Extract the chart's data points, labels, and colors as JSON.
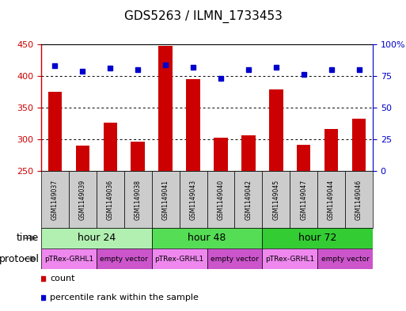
{
  "title": "GDS5263 / ILMN_1733453",
  "samples": [
    "GSM1149037",
    "GSM1149039",
    "GSM1149036",
    "GSM1149038",
    "GSM1149041",
    "GSM1149043",
    "GSM1149040",
    "GSM1149042",
    "GSM1149045",
    "GSM1149047",
    "GSM1149044",
    "GSM1149046"
  ],
  "counts": [
    375,
    290,
    326,
    296,
    447,
    395,
    302,
    306,
    379,
    291,
    316,
    333
  ],
  "percentile_ranks": [
    83,
    79,
    81,
    80,
    84,
    82,
    73,
    80,
    82,
    76,
    80,
    80
  ],
  "ylim_left": [
    250,
    450
  ],
  "ylim_right": [
    0,
    100
  ],
  "yticks_left": [
    250,
    300,
    350,
    400,
    450
  ],
  "yticks_right": [
    0,
    25,
    50,
    75,
    100
  ],
  "bar_color": "#cc0000",
  "dot_color": "#0000cc",
  "background_color": "#ffffff",
  "grid_dotted_values": [
    300,
    350,
    400
  ],
  "time_groups": [
    {
      "label": "hour 24",
      "start": 0,
      "end": 4,
      "color": "#b2f0b2"
    },
    {
      "label": "hour 48",
      "start": 4,
      "end": 8,
      "color": "#55dd55"
    },
    {
      "label": "hour 72",
      "start": 8,
      "end": 12,
      "color": "#33cc33"
    }
  ],
  "protocol_groups": [
    {
      "label": "pTRex-GRHL1",
      "start": 0,
      "end": 2,
      "color": "#ee88ee"
    },
    {
      "label": "empty vector",
      "start": 2,
      "end": 4,
      "color": "#cc55cc"
    },
    {
      "label": "pTRex-GRHL1",
      "start": 4,
      "end": 6,
      "color": "#ee88ee"
    },
    {
      "label": "empty vector",
      "start": 6,
      "end": 8,
      "color": "#cc55cc"
    },
    {
      "label": "pTRex-GRHL1",
      "start": 8,
      "end": 10,
      "color": "#ee88ee"
    },
    {
      "label": "empty vector",
      "start": 10,
      "end": 12,
      "color": "#cc55cc"
    }
  ],
  "legend_count_color": "#cc0000",
  "legend_pct_color": "#0000cc",
  "legend_count_label": "count",
  "legend_pct_label": "percentile rank within the sample",
  "time_label": "time",
  "protocol_label": "protocol",
  "title_fontsize": 11,
  "tick_fontsize": 8,
  "label_fontsize": 9,
  "sample_fontsize": 5.5,
  "group_fontsize": 9,
  "legend_fontsize": 8,
  "left_axis_color": "#cc0000",
  "right_axis_color": "#0000cc",
  "gray_box_color": "#cccccc",
  "bar_width": 0.5
}
